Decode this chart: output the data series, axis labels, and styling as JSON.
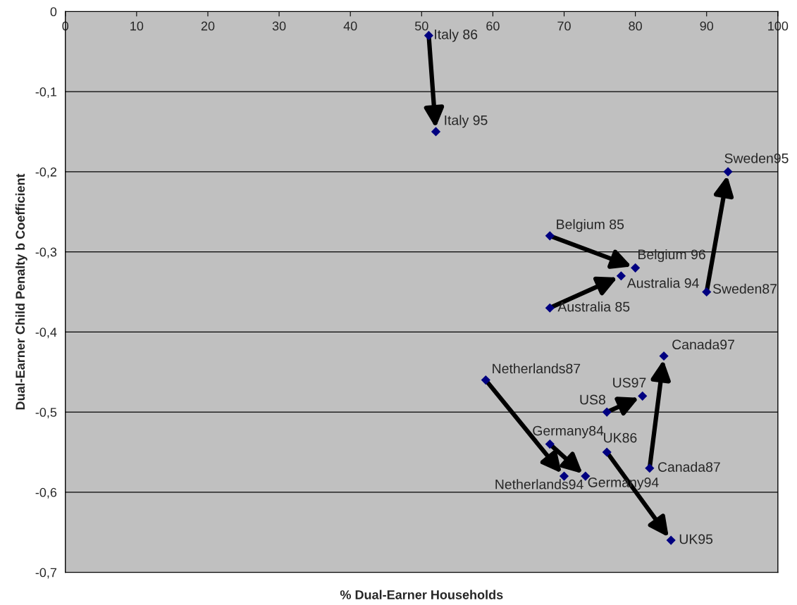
{
  "chart_data": {
    "type": "scatter",
    "xlabel": "% Dual-Earner Households",
    "ylabel": "Dual-Earner Child Penalty b Coefficient",
    "xlim": [
      0,
      100
    ],
    "xticks": [
      0,
      10,
      20,
      30,
      40,
      50,
      60,
      70,
      80,
      90,
      100
    ],
    "ylim": [
      -0.7,
      0
    ],
    "yticks": [
      {
        "value": -0.7,
        "label": "-0,7"
      },
      {
        "value": -0.6,
        "label": "-0,6"
      },
      {
        "value": -0.5,
        "label": "-0,5"
      },
      {
        "value": -0.4,
        "label": "-0,4"
      },
      {
        "value": -0.3,
        "label": "-0,3"
      },
      {
        "value": -0.2,
        "label": "-0,2"
      },
      {
        "value": -0.1,
        "label": "-0,1"
      },
      {
        "value": 0,
        "label": "0"
      }
    ],
    "grid": "y",
    "marker": "diamond",
    "legend": false,
    "series": [
      {
        "color": "#000080",
        "x": [
          51,
          52
        ],
        "values": [
          -0.03,
          -0.15
        ]
      },
      {
        "color": "#000080",
        "x": [
          90,
          93
        ],
        "values": [
          -0.35,
          -0.2
        ]
      },
      {
        "color": "#000080",
        "x": [
          68,
          80
        ],
        "values": [
          -0.28,
          -0.32
        ]
      },
      {
        "color": "#000080",
        "x": [
          68,
          78
        ],
        "values": [
          -0.37,
          -0.33
        ]
      },
      {
        "color": "#000080",
        "x": [
          82,
          84
        ],
        "values": [
          -0.57,
          -0.43
        ]
      },
      {
        "color": "#000080",
        "x": [
          59,
          70
        ],
        "values": [
          -0.46,
          -0.58
        ]
      },
      {
        "color": "#000080",
        "x": [
          68,
          73
        ],
        "values": [
          -0.54,
          -0.58
        ]
      },
      {
        "color": "#000080",
        "x": [
          76,
          81
        ],
        "values": [
          -0.5,
          -0.48
        ]
      },
      {
        "color": "#000080",
        "x": [
          76,
          85
        ],
        "values": [
          -0.55,
          -0.66
        ]
      }
    ],
    "annotations": [
      {
        "text": "Italy 86",
        "x": 51,
        "y": -0.03
      },
      {
        "text": "Italy 95",
        "x": 52,
        "y": -0.15
      },
      {
        "text": "Sweden95",
        "x": 93,
        "y": -0.2
      },
      {
        "text": "Sweden87",
        "x": 90,
        "y": -0.35
      },
      {
        "text": "Belgium 85",
        "x": 68,
        "y": -0.28
      },
      {
        "text": "Belgium 96",
        "x": 80,
        "y": -0.32
      },
      {
        "text": "Australia 94",
        "x": 78,
        "y": -0.33
      },
      {
        "text": "Australia 85",
        "x": 68,
        "y": -0.37
      },
      {
        "text": "Canada97",
        "x": 84,
        "y": -0.43
      },
      {
        "text": "Canada87",
        "x": 82,
        "y": -0.57
      },
      {
        "text": "Netherlands87",
        "x": 59,
        "y": -0.46
      },
      {
        "text": "Netherlands94",
        "x": 70,
        "y": -0.58
      },
      {
        "text": "Germany84",
        "x": 68,
        "y": -0.54
      },
      {
        "text": "Germany94",
        "x": 73,
        "y": -0.58
      },
      {
        "text": "US8",
        "x": 76,
        "y": -0.5
      },
      {
        "text": "US97",
        "x": 81,
        "y": -0.48
      },
      {
        "text": "UK86",
        "x": 76,
        "y": -0.55
      },
      {
        "text": "UK95",
        "x": 85,
        "y": -0.66
      }
    ]
  }
}
